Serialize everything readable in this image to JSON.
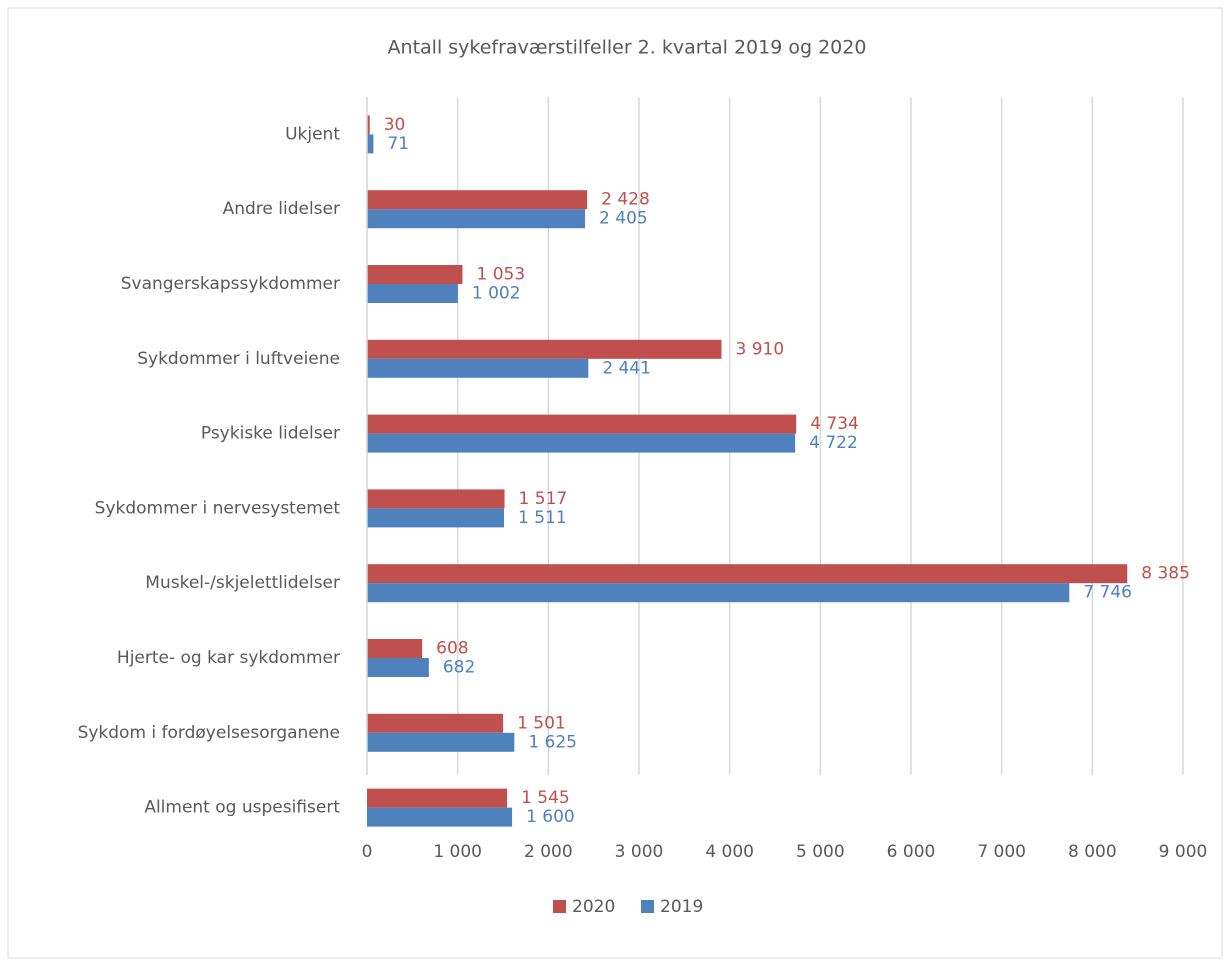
{
  "chart_data": {
    "type": "hbar",
    "title": "Antall sykefraværstilfeller 2. kvartal 2019 og 2020",
    "categories": [
      "Ukjent",
      "Andre lidelser",
      "Svangerskapssykdommer",
      "Sykdommer i luftveiene",
      "Psykiske lidelser",
      "Sykdommer i nervesystemet",
      "Muskel-/skjelettlidelser",
      "Hjerte- og kar sykdommer",
      "Sykdom i fordøyelsesorganene",
      "Allment og uspesifisert"
    ],
    "series": [
      {
        "name": "2020",
        "color": "#c0504d",
        "values": [
          30,
          2428,
          1053,
          3910,
          4734,
          1517,
          8385,
          608,
          1501,
          1545
        ],
        "value_labels": [
          "30",
          "2 428",
          "1 053",
          "3 910",
          "4 734",
          "1 517",
          "8 385",
          "608",
          "1 501",
          "1 545"
        ]
      },
      {
        "name": "2019",
        "color": "#4f81bd",
        "values": [
          71,
          2405,
          1002,
          2441,
          4722,
          1511,
          7746,
          682,
          1625,
          1600
        ],
        "value_labels": [
          "71",
          "2 405",
          "1 002",
          "2 441",
          "4 722",
          "1 511",
          "7 746",
          "682",
          "1 625",
          "1 600"
        ]
      }
    ],
    "xlim": [
      0,
      9000
    ],
    "xticks": [
      0,
      {
        "value": 1000,
        "label": "1 000"
      },
      {
        "value": 2000,
        "label": "2 000"
      },
      {
        "value": 3000,
        "label": "3 000"
      },
      {
        "value": 4000,
        "label": "4 000"
      },
      {
        "value": 5000,
        "label": "5 000"
      },
      {
        "value": 6000,
        "label": "6 000"
      },
      {
        "value": 7000,
        "label": "7 000"
      },
      {
        "value": 8000,
        "label": "8 000"
      },
      {
        "value": 9000,
        "label": "9 000"
      }
    ],
    "grid": true
  }
}
